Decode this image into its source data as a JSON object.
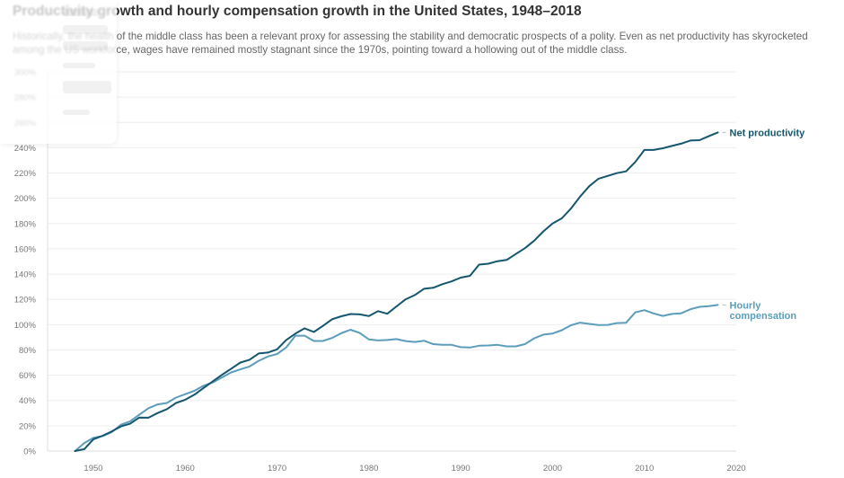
{
  "header": {
    "title": "Productivity growth and hourly compensation growth in the United States, 1948–2018",
    "subtitle": "Historically, the health of the middle class has been a relevant proxy for assessing the stability and democratic prospects of a polity. Even as net productivity has skyrocketed among the US workforce, wages have remained mostly stagnant since the 1970s, pointing toward a hollowing out of the middle class."
  },
  "colors": {
    "net_productivity": "#14566e",
    "hourly_compensation": "#5b9dbb",
    "grid": "#eeeeee",
    "axis": "#dddddd"
  },
  "chart_data": {
    "type": "line",
    "title": "Productivity growth and hourly compensation growth in the United States, 1948–2018",
    "xlabel": "",
    "ylabel": "",
    "xlim": [
      1942,
      2020
    ],
    "ylim": [
      0,
      300
    ],
    "x_ticks": [
      1950,
      1960,
      1970,
      1980,
      1990,
      2000,
      2010,
      2020
    ],
    "y_ticks": [
      0,
      20,
      40,
      60,
      80,
      100,
      120,
      140,
      160,
      180,
      200,
      220,
      240,
      260,
      280,
      300
    ],
    "y_tick_labels": [
      "0%",
      "20%",
      "40%",
      "60%",
      "80%",
      "100%",
      "120%",
      "140%",
      "160%",
      "180%",
      "200%",
      "220%",
      "240%",
      "260%",
      "280%",
      "300%"
    ],
    "x_tick_labels": [
      "1950",
      "1960",
      "1970",
      "1980",
      "1990",
      "2000",
      "2010",
      "2020"
    ],
    "grid": true,
    "legend": "inline-right",
    "x": [
      1948,
      1949,
      1950,
      1951,
      1952,
      1953,
      1954,
      1955,
      1956,
      1957,
      1958,
      1959,
      1960,
      1961,
      1962,
      1963,
      1964,
      1965,
      1966,
      1967,
      1968,
      1969,
      1970,
      1971,
      1972,
      1973,
      1974,
      1975,
      1976,
      1977,
      1978,
      1979,
      1980,
      1981,
      1982,
      1983,
      1984,
      1985,
      1986,
      1987,
      1988,
      1989,
      1990,
      1991,
      1992,
      1993,
      1994,
      1995,
      1996,
      1997,
      1998,
      1999,
      2000,
      2001,
      2002,
      2003,
      2004,
      2005,
      2006,
      2007,
      2008,
      2009,
      2010,
      2011,
      2012,
      2013,
      2014,
      2015,
      2016,
      2017,
      2018
    ],
    "series": [
      {
        "name": "Net productivity",
        "label_lines": [
          "Net productivity"
        ],
        "values": [
          0,
          1.5,
          9.3,
          12.1,
          15.6,
          19.5,
          21.6,
          26.5,
          26.4,
          30.1,
          33.1,
          38.0,
          40.6,
          44.6,
          49.9,
          55.2,
          60.3,
          65.1,
          70.0,
          72.2,
          77.2,
          77.9,
          80.5,
          87.9,
          92.9,
          97.1,
          94.2,
          99.0,
          104.3,
          106.6,
          108.4,
          108.1,
          106.8,
          110.7,
          108.6,
          114.4,
          120.1,
          123.4,
          128.4,
          129.2,
          132.0,
          134.2,
          137.2,
          138.6,
          147.5,
          148.2,
          150.2,
          151.2,
          155.9,
          160.5,
          166.5,
          173.8,
          180.0,
          184.1,
          191.9,
          201.3,
          209.6,
          215.5,
          217.7,
          219.9,
          221.3,
          228.7,
          238.2,
          238.2,
          239.6,
          241.4,
          243.2,
          245.7,
          246.0,
          249.1,
          252.1
        ]
      },
      {
        "name": "Hourly compensation",
        "label_lines": [
          "Hourly",
          "compensation"
        ],
        "values": [
          0,
          6.3,
          10.5,
          11.8,
          15.0,
          20.8,
          23.5,
          28.7,
          33.9,
          36.9,
          38.0,
          42.3,
          45.0,
          47.6,
          51.7,
          54.3,
          58.2,
          62.2,
          64.6,
          66.9,
          71.4,
          74.8,
          76.8,
          82.0,
          91.3,
          91.3,
          87.1,
          87.1,
          89.5,
          93.3,
          96.0,
          93.4,
          88.3,
          87.5,
          87.9,
          88.6,
          87.0,
          86.3,
          87.3,
          84.6,
          84.0,
          84.0,
          82.2,
          81.9,
          83.3,
          83.5,
          84.0,
          82.8,
          82.8,
          84.6,
          89.2,
          92.1,
          93.0,
          95.6,
          99.5,
          101.6,
          100.6,
          99.7,
          99.8,
          101.2,
          101.5,
          109.7,
          111.5,
          108.9,
          106.9,
          108.5,
          109.0,
          112.2,
          114.1,
          114.6,
          115.6
        ]
      }
    ]
  },
  "overlay_panel": {
    "visible": true,
    "description": "faint faded popover in the top-left corner"
  }
}
